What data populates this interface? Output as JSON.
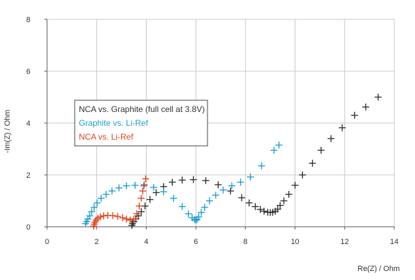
{
  "chart_data": {
    "type": "scatter",
    "title": "",
    "xlabel": "Re(Z) / Ohm",
    "ylabel": "-Im(Z) / Ohm",
    "xlim": [
      0,
      14
    ],
    "ylim": [
      0,
      8
    ],
    "xticks": [
      0,
      2,
      4,
      6,
      8,
      10,
      12,
      14
    ],
    "yticks": [
      0,
      2,
      4,
      6,
      8
    ],
    "grid": true,
    "legend_position": "center-left",
    "series": [
      {
        "name": "NCA vs. Graphite (full cell at 3.8V)",
        "color": "#333333",
        "marker": "plus",
        "x": [
          3.42,
          3.45,
          3.5,
          3.58,
          3.68,
          3.8,
          3.95,
          4.15,
          4.4,
          4.7,
          5.05,
          5.45,
          5.9,
          6.4,
          6.9,
          7.4,
          7.85,
          8.15,
          8.4,
          8.6,
          8.75,
          8.9,
          9.0,
          9.1,
          9.2,
          9.3,
          9.4,
          9.55,
          9.75,
          10.0,
          10.3,
          10.7,
          11.05,
          11.45,
          11.9,
          12.4,
          12.85,
          13.35
        ],
        "y": [
          0.05,
          0.12,
          0.2,
          0.3,
          0.42,
          0.58,
          0.8,
          1.05,
          1.32,
          1.55,
          1.72,
          1.8,
          1.82,
          1.78,
          1.62,
          1.38,
          1.12,
          0.92,
          0.78,
          0.67,
          0.6,
          0.56,
          0.55,
          0.56,
          0.6,
          0.68,
          0.82,
          1.0,
          1.25,
          1.6,
          2.0,
          2.45,
          2.95,
          3.4,
          3.82,
          4.3,
          4.62,
          5.0
        ]
      },
      {
        "name": "Graphite vs. Li-Ref",
        "color": "#1ea0d0",
        "marker": "plus",
        "x": [
          1.55,
          1.6,
          1.65,
          1.72,
          1.8,
          1.9,
          2.02,
          2.18,
          2.38,
          2.62,
          2.9,
          3.2,
          3.55,
          3.9,
          4.3,
          4.7,
          5.1,
          5.45,
          5.7,
          5.85,
          5.95,
          6.0,
          6.05,
          6.12,
          6.22,
          6.35,
          6.55,
          6.8,
          7.1,
          7.45,
          7.8,
          8.2,
          8.65,
          9.15,
          9.35
        ],
        "y": [
          0.12,
          0.2,
          0.3,
          0.42,
          0.58,
          0.75,
          0.92,
          1.1,
          1.25,
          1.38,
          1.5,
          1.58,
          1.6,
          1.58,
          1.52,
          1.35,
          1.1,
          0.78,
          0.5,
          0.35,
          0.28,
          0.25,
          0.28,
          0.38,
          0.55,
          0.75,
          1.0,
          1.22,
          1.42,
          1.58,
          1.72,
          1.92,
          2.35,
          2.95,
          3.15
        ]
      },
      {
        "name": "NCA vs. Li-Ref",
        "color": "#e2431e",
        "marker": "plus",
        "x": [
          1.88,
          1.9,
          1.93,
          1.98,
          2.05,
          2.15,
          2.28,
          2.45,
          2.65,
          2.85,
          3.05,
          3.2,
          3.35,
          3.5,
          3.62,
          3.72,
          3.8,
          3.86,
          3.92,
          3.98
        ],
        "y": [
          0.02,
          0.1,
          0.18,
          0.26,
          0.33,
          0.38,
          0.42,
          0.44,
          0.43,
          0.4,
          0.35,
          0.3,
          0.26,
          0.3,
          0.5,
          0.8,
          1.1,
          1.38,
          1.62,
          1.85
        ]
      }
    ]
  }
}
